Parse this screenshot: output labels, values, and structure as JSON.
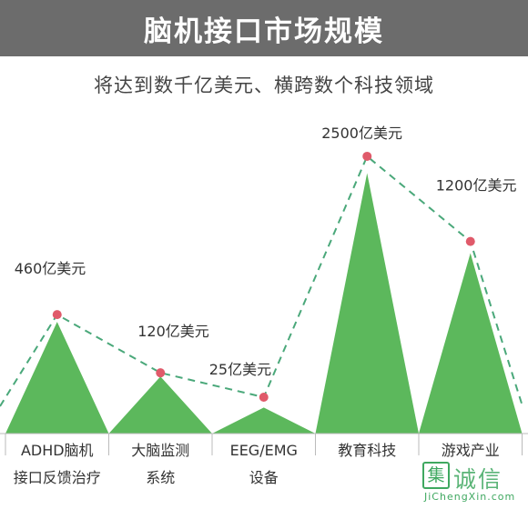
{
  "header": {
    "title": "脑机接口市场规模"
  },
  "subtitle": "将达到数千亿美元、横跨数个科技领域",
  "chart_data": {
    "type": "area",
    "categories": [
      [
        "ADHD脑机",
        "接口反馈治疗"
      ],
      [
        "大脑监测",
        "系统"
      ],
      [
        "EEG/EMG",
        "设备"
      ],
      [
        "教育科技"
      ],
      [
        "游戏产业"
      ]
    ],
    "values": [
      460,
      120,
      25,
      2500,
      1200
    ],
    "data_labels": [
      "460亿美元",
      "120亿美元",
      "25亿美元",
      "2500亿美元",
      "1200亿美元"
    ],
    "title": "",
    "xlabel": "",
    "ylabel": "",
    "ylim": [
      0,
      2600
    ],
    "grid": false,
    "colors": {
      "fill": "#5cb85c",
      "line": "#4aa87a",
      "marker": "#e05a6a",
      "axis": "#bbbbbb"
    }
  },
  "watermark": {
    "icon": "集",
    "text": "诚信",
    "url": "JiChengXin.com"
  }
}
